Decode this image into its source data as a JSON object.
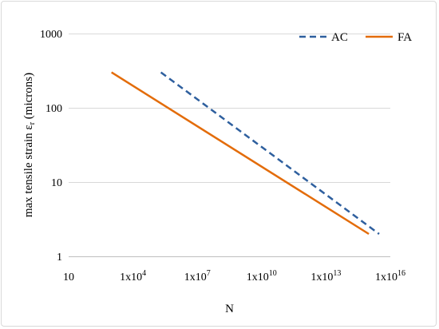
{
  "chart_data": {
    "type": "line",
    "xscale": "log",
    "yscale": "log",
    "xlim": [
      10,
      1e+16
    ],
    "ylim": [
      1,
      1000
    ],
    "xticks": [
      {
        "value": 10,
        "label": "10"
      },
      {
        "value": 10000,
        "label": "1x10^4"
      },
      {
        "value": 10000000,
        "label": "1x10^7"
      },
      {
        "value": 10000000000,
        "label": "1x10^10"
      },
      {
        "value": 10000000000000,
        "label": "1x10^13"
      },
      {
        "value": 10000000000000000,
        "label": "1x10^16"
      }
    ],
    "yticks": [
      {
        "value": 1,
        "label": "1"
      },
      {
        "value": 10,
        "label": "10"
      },
      {
        "value": 100,
        "label": "100"
      },
      {
        "value": 1000,
        "label": "1000"
      }
    ],
    "xlabel": "N",
    "ylabel": "max tensile strain ε",
    "ylabel_sub": "r",
    "ylabel_suffix": " (microns)",
    "grid": "horizontal",
    "legend_position": "top-right",
    "series": [
      {
        "name": "AC",
        "color": "#2e5f9e",
        "dash": "dashed",
        "x": [
          200000,
          3000000000000000.0
        ],
        "y": [
          300,
          2
        ]
      },
      {
        "name": "FA",
        "color": "#e36c0a",
        "dash": "solid",
        "x": [
          1000,
          1000000000000000.0
        ],
        "y": [
          300,
          2
        ]
      }
    ]
  }
}
